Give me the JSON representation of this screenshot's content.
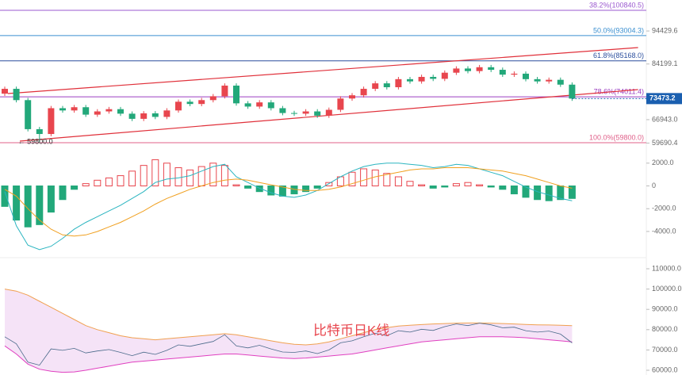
{
  "chart_data": [
    {
      "type": "candlestick",
      "open": [
        75000,
        76500,
        73000,
        64000,
        62500,
        70500,
        69800,
        70800,
        68500,
        69500,
        70200,
        68800,
        67200,
        68900,
        67800,
        69800,
        72500,
        71800,
        73000,
        74200,
        77500,
        72000,
        71000,
        72300,
        70500,
        69000,
        68800,
        69500,
        68200,
        70000,
        73500,
        74500,
        76500,
        78200,
        77000,
        79500,
        78800,
        80200,
        79600,
        81500,
        82800,
        82000,
        83200,
        82400,
        80900,
        81200,
        79500,
        78800,
        79300,
        77800
      ],
      "high": [
        77200,
        77200,
        73700,
        64700,
        71200,
        71200,
        71500,
        71500,
        70200,
        70900,
        70900,
        69500,
        69600,
        69600,
        70500,
        73200,
        73200,
        73700,
        74900,
        78200,
        78200,
        72700,
        73000,
        73000,
        71200,
        69700,
        70200,
        70200,
        70700,
        74200,
        75200,
        77200,
        78900,
        78900,
        80200,
        80200,
        80900,
        80900,
        82200,
        83500,
        83500,
        83900,
        83900,
        83100,
        81900,
        81900,
        80200,
        80000,
        80000,
        78500
      ],
      "low": [
        74300,
        72300,
        63300,
        59800,
        61800,
        69100,
        69100,
        67800,
        67800,
        68800,
        68100,
        66500,
        66500,
        67100,
        67100,
        69100,
        71100,
        71100,
        72300,
        73500,
        71300,
        70300,
        70300,
        69800,
        68300,
        68100,
        68100,
        67500,
        67500,
        69300,
        72800,
        73800,
        75800,
        76300,
        76300,
        78100,
        78100,
        78900,
        78900,
        80800,
        81300,
        81300,
        81700,
        80200,
        80200,
        78800,
        78100,
        78100,
        77100,
        72773
      ],
      "close": [
        76500,
        73000,
        64000,
        62500,
        70500,
        69800,
        70800,
        68500,
        69500,
        70200,
        68800,
        67200,
        68900,
        67800,
        69800,
        72500,
        71800,
        73000,
        74200,
        77500,
        72000,
        71000,
        72300,
        70500,
        69000,
        68800,
        69500,
        68200,
        70000,
        73500,
        74500,
        76500,
        78200,
        77000,
        79500,
        78800,
        80200,
        79600,
        81500,
        82800,
        82000,
        83200,
        82400,
        80900,
        81200,
        79500,
        78800,
        79300,
        77800,
        73473.2
      ],
      "up_color": "#e8464e",
      "down_color": "#22a87a",
      "ylim": [
        56114,
        104035
      ],
      "yticks": [
        94429.6,
        84199.1,
        {
          "value": 66943,
          "label": "66943.0"
        },
        59690.4
      ],
      "last_price": 73473.2,
      "low_marker": {
        "value": 59800,
        "label": "← 59800.0"
      },
      "fib_levels": [
        {
          "value": 100840.5,
          "label": "38.2%(100840.5)",
          "color": "#9b59d0"
        },
        {
          "value": 93004.3,
          "label": "50.0%(93004.3)",
          "color": "#3a8fd0"
        },
        {
          "value": 85168.0,
          "label": "61.8%(85168.0)",
          "color": "#2c4f9e"
        },
        {
          "value": 74011.4,
          "label": "78.6%(74011.4)",
          "color": "#9b3fc0"
        },
        {
          "value": 59800.0,
          "label": "100.0%(59800.0)",
          "color": "#e0608a"
        }
      ],
      "trendlines": [
        {
          "color": "#e0303a",
          "x": [
            0.27,
            54.7
          ],
          "values": [
            75037,
            89290
          ]
        },
        {
          "color": "#e0303a",
          "x": [
            1.3,
            54.7
          ],
          "values": [
            60292,
            76265
          ]
        }
      ]
    },
    {
      "type": "macd",
      "histogram": [
        -1800,
        -3000,
        -3600,
        -3400,
        -2300,
        -1200,
        -300,
        200,
        500,
        700,
        900,
        1300,
        1800,
        2300,
        2000,
        1600,
        1400,
        1700,
        2000,
        1800,
        100,
        -200,
        -500,
        -800,
        -900,
        -700,
        -500,
        -200,
        300,
        800,
        1200,
        1500,
        1400,
        1100,
        800,
        400,
        100,
        -200,
        -100,
        200,
        300,
        100,
        -100,
        -300,
        -700,
        -1000,
        -1200,
        -1300,
        -1200,
        -1100
      ],
      "dif": [
        -500,
        -3500,
        -5200,
        -5600,
        -5300,
        -4600,
        -3800,
        -3200,
        -2700,
        -2200,
        -1700,
        -1100,
        -500,
        300,
        600,
        700,
        900,
        1300,
        1700,
        1900,
        800,
        300,
        -200,
        -600,
        -900,
        -1000,
        -800,
        -400,
        200,
        800,
        1300,
        1700,
        1900,
        2000,
        2000,
        1900,
        1800,
        1600,
        1700,
        1900,
        1800,
        1500,
        1200,
        900,
        400,
        -100,
        -500,
        -800,
        -1100,
        -1300
      ],
      "dea": [
        -300,
        -900,
        -2000,
        -3000,
        -3800,
        -4300,
        -4400,
        -4300,
        -4000,
        -3600,
        -3200,
        -2700,
        -2200,
        -1600,
        -1100,
        -700,
        -300,
        0,
        300,
        500,
        600,
        500,
        300,
        100,
        -100,
        -300,
        -400,
        -400,
        -300,
        -100,
        200,
        500,
        800,
        1000,
        1200,
        1400,
        1500,
        1500,
        1600,
        1600,
        1600,
        1500,
        1400,
        1300,
        1100,
        900,
        600,
        300,
        0,
        -200
      ],
      "up_color": "#e8464e",
      "down_color": "#22a87a",
      "dif_color": "#2bb5c0",
      "dea_color": "#f0a020",
      "ylim": [
        -6300,
        2750
      ],
      "yticks": [
        {
          "value": 2000,
          "label": "2000.0"
        },
        0.0,
        {
          "value": -2000,
          "label": "-2000.0"
        },
        {
          "value": -4000,
          "label": "-4000.0"
        }
      ]
    },
    {
      "type": "band",
      "upper": [
        100000,
        99000,
        97000,
        94000,
        91000,
        88000,
        85000,
        82000,
        80000,
        78500,
        77000,
        76000,
        75500,
        75000,
        75500,
        76000,
        76500,
        77000,
        77500,
        78000,
        77500,
        76500,
        75500,
        74500,
        73500,
        72800,
        72500,
        73000,
        74000,
        75500,
        77000,
        78500,
        80000,
        81000,
        81800,
        82200,
        82500,
        82800,
        83000,
        83200,
        83300,
        83300,
        83200,
        83000,
        82800,
        82600,
        82400,
        82300,
        82200,
        82000
      ],
      "lower": [
        72000,
        68000,
        63000,
        60500,
        59500,
        59000,
        59200,
        60000,
        61000,
        62000,
        63000,
        64000,
        64500,
        65000,
        65500,
        66000,
        66500,
        67000,
        67500,
        68000,
        68000,
        67500,
        67000,
        66500,
        66000,
        65800,
        66000,
        66500,
        67000,
        67500,
        68000,
        69000,
        70000,
        71000,
        72000,
        73000,
        74000,
        74500,
        75000,
        75500,
        76000,
        76500,
        76500,
        76500,
        76300,
        76000,
        75500,
        75000,
        74500,
        74000
      ],
      "upper_color": "#f0a050",
      "lower_color": "#e040c0",
      "fill": "#f2dcf5",
      "annotation": "比特币日K线",
      "ylim": [
        57660,
        115470
      ],
      "yticks": [
        {
          "value": 110000,
          "label": "110000.0"
        },
        {
          "value": 100000,
          "label": "100000.0"
        },
        {
          "value": 90000,
          "label": "90000.0"
        },
        {
          "value": 80000,
          "label": "80000.0"
        },
        {
          "value": 70000,
          "label": "70000.0"
        },
        {
          "value": 60000,
          "label": "60000.0"
        }
      ]
    }
  ]
}
